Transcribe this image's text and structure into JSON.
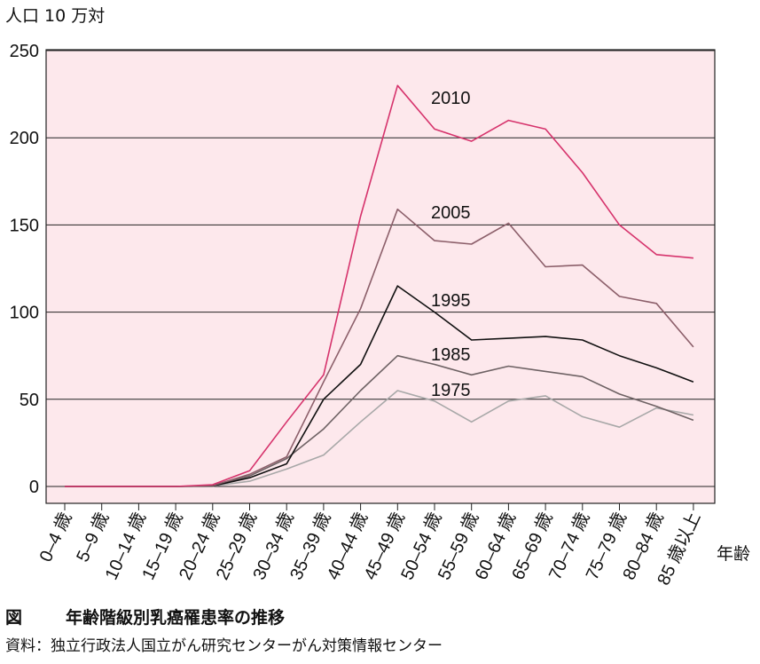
{
  "chart_data": {
    "type": "line",
    "ylabel": "人口 10 万対",
    "xlabel": "年齢",
    "ylim": [
      0,
      250
    ],
    "yticks": [
      0,
      50,
      100,
      150,
      200,
      250
    ],
    "grid": true,
    "plot_background": "#fde8ec",
    "categories": [
      "0–4 歳",
      "5–9 歳",
      "10–14 歳",
      "15–19 歳",
      "20–24 歳",
      "25–29 歳",
      "30–34 歳",
      "35–39 歳",
      "40–44 歳",
      "45–49 歳",
      "50–54 歳",
      "55–59 歳",
      "60–64 歳",
      "65–69 歳",
      "70–74 歳",
      "75–79 歳",
      "80–84 歳",
      "85 歳以上"
    ],
    "series": [
      {
        "name": "2010",
        "color": "#d6336c",
        "values": [
          0,
          0,
          0,
          0,
          1,
          9,
          37,
          64,
          155,
          230,
          205,
          198,
          210,
          205,
          180,
          150,
          133,
          131
        ]
      },
      {
        "name": "2005",
        "color": "#8c5f6a",
        "values": [
          0,
          0,
          0,
          0,
          0.5,
          7,
          17,
          60,
          102,
          159,
          141,
          139,
          151,
          126,
          127,
          109,
          105,
          80
        ]
      },
      {
        "name": "1995",
        "color": "#111111",
        "values": [
          0,
          0,
          0,
          0,
          0.3,
          5,
          13,
          50,
          70,
          115,
          100,
          84,
          85,
          86,
          84,
          75,
          68,
          60
        ]
      },
      {
        "name": "1985",
        "color": "#6e6264",
        "values": [
          0,
          0,
          0,
          0,
          0.3,
          6,
          16,
          33,
          55,
          75,
          70,
          64,
          69,
          66,
          63,
          53,
          46,
          38
        ]
      },
      {
        "name": "1975",
        "color": "#a8a8a8",
        "values": [
          0,
          0,
          0,
          0,
          0.2,
          3,
          10,
          18,
          37,
          55,
          49,
          37,
          49,
          52,
          40,
          34,
          45,
          41
        ]
      }
    ]
  },
  "figure": {
    "caption_mark": "図",
    "caption_title": "年齢階級別乳癌罹患率の推移",
    "source": "資料：独立行政法人国立がん研究センターがん対策情報センター"
  }
}
